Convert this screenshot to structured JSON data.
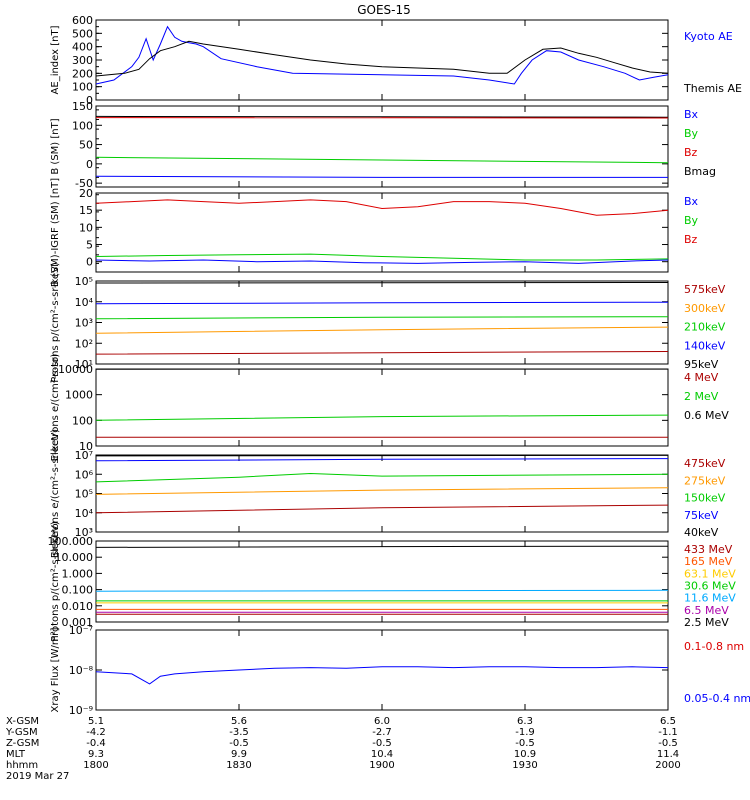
{
  "title": "GOES-15",
  "chart_data": [
    {
      "type": "line",
      "ylabel": "AE_index [nT]",
      "yscale": "linear",
      "ylim": [
        0,
        600
      ],
      "yticks": [
        0,
        100,
        200,
        300,
        400,
        500,
        600
      ],
      "yticklabels": [
        "0",
        "100",
        "200",
        "300",
        "400",
        "500",
        "600"
      ],
      "legend": [
        "Kyoto AE",
        "Themis AE"
      ],
      "legend_colors": [
        "#0000ff",
        "#000000"
      ],
      "series": [
        {
          "name": "Kyoto AE",
          "color": "#0000ff",
          "x": [
            1800,
            1805,
            1810,
            1812,
            1814,
            1816,
            1818,
            1820,
            1822,
            1824,
            1826,
            1828,
            1830,
            1835,
            1845,
            1855,
            1900,
            1910,
            1917,
            1919,
            1922,
            1926,
            1930,
            1935,
            1942,
            1948,
            1952,
            1956,
            1960
          ],
          "y": [
            120,
            150,
            250,
            320,
            460,
            300,
            420,
            550,
            470,
            440,
            430,
            420,
            400,
            310,
            250,
            200,
            180,
            150,
            120,
            200,
            300,
            370,
            360,
            300,
            250,
            200,
            150,
            170,
            190
          ]
        },
        {
          "name": "Themis AE",
          "color": "#000000",
          "x": [
            1800,
            1808,
            1812,
            1815,
            1818,
            1822,
            1826,
            1830,
            1840,
            1850,
            1860,
            1870,
            1880,
            1890,
            1900,
            1910,
            1915,
            1920,
            1925,
            1930,
            1935,
            1940,
            1945,
            1950,
            1955,
            1960
          ],
          "y": [
            180,
            200,
            230,
            310,
            370,
            400,
            440,
            420,
            380,
            340,
            300,
            270,
            250,
            240,
            230,
            200,
            200,
            300,
            380,
            390,
            350,
            320,
            280,
            240,
            210,
            200
          ]
        }
      ]
    },
    {
      "type": "line",
      "ylabel": "B (SM) [nT]",
      "yscale": "linear",
      "ylim": [
        -60,
        150
      ],
      "yticks": [
        -50,
        0,
        50,
        100,
        150
      ],
      "yticklabels": [
        "-50",
        "0",
        "50",
        "100",
        "150"
      ],
      "legend": [
        "Bx",
        "By",
        "Bz",
        "Bmag"
      ],
      "legend_colors": [
        "#0000ff",
        "#00cc00",
        "#dd0000",
        "#000000"
      ],
      "series": [
        {
          "name": "Bmag",
          "color": "#000000",
          "x": [
            1800,
            1960
          ],
          "y": [
            123,
            121
          ]
        },
        {
          "name": "Bz",
          "color": "#dd0000",
          "x": [
            1800,
            1960
          ],
          "y": [
            120,
            119
          ]
        },
        {
          "name": "By",
          "color": "#00cc00",
          "x": [
            1800,
            1880,
            1960
          ],
          "y": [
            17,
            10,
            3
          ]
        },
        {
          "name": "Bx",
          "color": "#0000ff",
          "x": [
            1800,
            1880,
            1960
          ],
          "y": [
            -32,
            -35,
            -35
          ]
        }
      ]
    },
    {
      "type": "line",
      "ylabel": "B (SM)-IGRF (SM) [nT]",
      "yscale": "linear",
      "ylim": [
        -3,
        20
      ],
      "yticks": [
        0,
        5,
        10,
        15,
        20
      ],
      "yticklabels": [
        "0",
        "5",
        "10",
        "15",
        "20"
      ],
      "legend": [
        "Bx",
        "By",
        "Bz"
      ],
      "legend_colors": [
        "#0000ff",
        "#00cc00",
        "#dd0000"
      ],
      "series": [
        {
          "name": "Bz",
          "color": "#dd0000",
          "x": [
            1800,
            1810,
            1820,
            1830,
            1840,
            1850,
            1860,
            1870,
            1880,
            1890,
            1900,
            1910,
            1920,
            1930,
            1940,
            1950,
            1960
          ],
          "y": [
            17,
            17.5,
            18,
            17.5,
            17,
            17.5,
            18,
            17.5,
            15.5,
            16,
            17.5,
            17.5,
            17,
            15.5,
            13.5,
            14,
            15
          ]
        },
        {
          "name": "By",
          "color": "#00cc00",
          "x": [
            1800,
            1820,
            1840,
            1860,
            1880,
            1900,
            1920,
            1940,
            1960
          ],
          "y": [
            1.5,
            1.8,
            2.0,
            2.2,
            1.5,
            1.0,
            0.5,
            0.5,
            0.8
          ]
        },
        {
          "name": "Bx",
          "color": "#0000ff",
          "x": [
            1800,
            1815,
            1830,
            1845,
            1860,
            1875,
            1890,
            1905,
            1920,
            1935,
            1950,
            1960
          ],
          "y": [
            0.5,
            0.2,
            0.5,
            0.0,
            0.2,
            -0.3,
            -0.5,
            -0.2,
            0.0,
            -0.5,
            0.2,
            0.5
          ]
        }
      ]
    },
    {
      "type": "line",
      "ylabel": "Protons p/(cm²-s-sr-keV)",
      "yscale": "log",
      "ylim": [
        10,
        100000
      ],
      "yticks": [
        10,
        100,
        1000,
        10000,
        100000
      ],
      "yticklabels": [
        "10¹",
        "10²",
        "10³",
        "10⁴",
        "10⁵"
      ],
      "legend": [
        "575keV",
        "300keV",
        "210keV",
        "140keV",
        "95keV"
      ],
      "legend_colors": [
        "#aa0000",
        "#ff9900",
        "#00cc00",
        "#0000ff",
        "#000000"
      ],
      "series": [
        {
          "name": "95keV",
          "color": "#000000",
          "x": [
            1800,
            1960
          ],
          "y": [
            80000,
            85000
          ]
        },
        {
          "name": "140keV",
          "color": "#0000ff",
          "x": [
            1800,
            1880,
            1960
          ],
          "y": [
            8000,
            9000,
            9500
          ]
        },
        {
          "name": "210keV",
          "color": "#00cc00",
          "x": [
            1800,
            1880,
            1960
          ],
          "y": [
            1500,
            1800,
            1900
          ]
        },
        {
          "name": "300keV",
          "color": "#ff9900",
          "x": [
            1800,
            1880,
            1960
          ],
          "y": [
            300,
            450,
            600
          ]
        },
        {
          "name": "575keV",
          "color": "#aa0000",
          "x": [
            1800,
            1880,
            1960
          ],
          "y": [
            30,
            35,
            40
          ]
        }
      ]
    },
    {
      "type": "line",
      "ylabel": "Electrons e/(cm²-s-sr)",
      "yscale": "log",
      "ylim": [
        10,
        10000
      ],
      "yticks": [
        10,
        100,
        1000,
        10000
      ],
      "yticklabels": [
        "10",
        "100",
        "1000",
        "10000"
      ],
      "legend": [
        "4 MeV",
        "2 MeV",
        "0.6 MeV"
      ],
      "legend_colors": [
        "#aa0000",
        "#00cc00",
        "#000000"
      ],
      "series": [
        {
          "name": "0.6 MeV",
          "color": "#000000",
          "x": [
            1800,
            1960
          ],
          "y": [
            9800,
            9900
          ]
        },
        {
          "name": "2 MeV",
          "color": "#00cc00",
          "x": [
            1800,
            1880,
            1960
          ],
          "y": [
            100,
            140,
            160
          ]
        },
        {
          "name": "4 MeV",
          "color": "#aa0000",
          "x": [
            1800,
            1880,
            1960
          ],
          "y": [
            22,
            22,
            22
          ]
        }
      ]
    },
    {
      "type": "line",
      "ylabel": "Electrons e/(cm²-s-sr-keV)",
      "yscale": "log",
      "ylim": [
        1000,
        10000000
      ],
      "yticks": [
        1000,
        10000,
        100000,
        1000000,
        10000000
      ],
      "yticklabels": [
        "10³",
        "10⁴",
        "10⁵",
        "10⁶",
        "10⁷"
      ],
      "legend": [
        "475keV",
        "275keV",
        "150keV",
        "75keV",
        "40keV"
      ],
      "legend_colors": [
        "#aa0000",
        "#ff9900",
        "#00cc00",
        "#0000ff",
        "#000000"
      ],
      "series": [
        {
          "name": "40keV",
          "color": "#000000",
          "x": [
            1800,
            1960
          ],
          "y": [
            9000000,
            9500000
          ]
        },
        {
          "name": "75keV",
          "color": "#0000ff",
          "x": [
            1800,
            1880,
            1960
          ],
          "y": [
            5000000,
            6000000,
            6500000
          ]
        },
        {
          "name": "150keV",
          "color": "#00cc00",
          "x": [
            1800,
            1840,
            1860,
            1880,
            1960
          ],
          "y": [
            400000,
            700000,
            1100000,
            800000,
            1000000
          ]
        },
        {
          "name": "275keV",
          "color": "#ff9900",
          "x": [
            1800,
            1880,
            1960
          ],
          "y": [
            90000,
            150000,
            200000
          ]
        },
        {
          "name": "475keV",
          "color": "#aa0000",
          "x": [
            1800,
            1880,
            1960
          ],
          "y": [
            10000,
            18000,
            25000
          ]
        }
      ]
    },
    {
      "type": "line",
      "ylabel": "Protons p/(cm²-s-sr-keV)",
      "yscale": "log",
      "ylim": [
        0.001,
        100
      ],
      "yticks": [
        0.001,
        0.01,
        0.1,
        1,
        10,
        100
      ],
      "yticklabels": [
        "0.001",
        "0.010",
        "0.100",
        "1.000",
        "10.000",
        "100.000"
      ],
      "legend": [
        "433 MeV",
        "165 MeV",
        "63.1 MeV",
        "30.6 MeV",
        "11.6 MeV",
        "6.5 MeV",
        "2.5 MeV"
      ],
      "legend_colors": [
        "#aa0000",
        "#ff5500",
        "#ffcc00",
        "#00cc00",
        "#00aaff",
        "#aa00aa",
        "#000000"
      ],
      "series": [
        {
          "name": "2.5 MeV",
          "color": "#000000",
          "x": [
            1800,
            1880,
            1960
          ],
          "y": [
            40,
            45,
            48
          ]
        },
        {
          "name": "6.5 MeV",
          "color": "#aa00aa",
          "x": [
            1800,
            1960
          ],
          "y": [
            0.004,
            0.004
          ]
        },
        {
          "name": "11.6 MeV",
          "color": "#00aaff",
          "x": [
            1800,
            1960
          ],
          "y": [
            0.08,
            0.09
          ]
        },
        {
          "name": "30.6 MeV",
          "color": "#00cc00",
          "x": [
            1800,
            1960
          ],
          "y": [
            0.02,
            0.02
          ]
        },
        {
          "name": "63.1 MeV",
          "color": "#ffcc00",
          "x": [
            1800,
            1960
          ],
          "y": [
            0.015,
            0.015
          ]
        },
        {
          "name": "165 MeV",
          "color": "#ff5500",
          "x": [
            1800,
            1960
          ],
          "y": [
            0.006,
            0.006
          ]
        },
        {
          "name": "433 MeV",
          "color": "#aa0000",
          "x": [
            1800,
            1960
          ],
          "y": [
            0.003,
            0.003
          ]
        }
      ]
    },
    {
      "type": "line",
      "ylabel": "Xray Flux [W/m²]",
      "yscale": "log",
      "ylim": [
        1e-09,
        1e-07
      ],
      "yticks": [
        1e-09,
        1e-08,
        1e-07
      ],
      "yticklabels": [
        "10⁻⁹",
        "10⁻⁸",
        "10⁻⁷"
      ],
      "legend": [
        "0.1-0.8 nm",
        "0.05-0.4 nm"
      ],
      "legend_colors": [
        "#dd0000",
        "#0000ff"
      ],
      "series": [
        {
          "name": "0.1-0.8 nm",
          "color": "#dd0000",
          "x": [],
          "y": []
        },
        {
          "name": "0.05-0.4 nm",
          "color": "#0000ff",
          "x": [
            1800,
            1810,
            1815,
            1818,
            1822,
            1830,
            1840,
            1850,
            1860,
            1870,
            1880,
            1890,
            1900,
            1910,
            1920,
            1930,
            1940,
            1950,
            1960
          ],
          "y": [
            9e-09,
            8e-09,
            4.5e-09,
            7e-09,
            8e-09,
            9e-09,
            1e-08,
            1.1e-08,
            1.15e-08,
            1.1e-08,
            1.2e-08,
            1.2e-08,
            1.15e-08,
            1.2e-08,
            1.2e-08,
            1.15e-08,
            1.15e-08,
            1.2e-08,
            1.15e-08
          ]
        }
      ]
    }
  ],
  "xaxis": {
    "rows": [
      {
        "label": "X-GSM",
        "values": [
          "5.1",
          "5.6",
          "6.0",
          "6.3",
          "6.5"
        ]
      },
      {
        "label": "Y-GSM",
        "values": [
          "-4.2",
          "-3.5",
          "-2.7",
          "-1.9",
          "-1.1"
        ]
      },
      {
        "label": "Z-GSM",
        "values": [
          "-0.4",
          "-0.5",
          "-0.5",
          "-0.5",
          "-0.5"
        ]
      },
      {
        "label": "MLT",
        "values": [
          "9.3",
          "9.9",
          "10.4",
          "10.9",
          "11.4"
        ]
      },
      {
        "label": "hhmm",
        "values": [
          "1800",
          "1830",
          "1900",
          "1930",
          "2000"
        ]
      }
    ],
    "date": "2019 Mar 27",
    "xlim": [
      1800,
      1960
    ],
    "ticks": [
      1800,
      1840,
      1880,
      1920,
      1960
    ]
  }
}
